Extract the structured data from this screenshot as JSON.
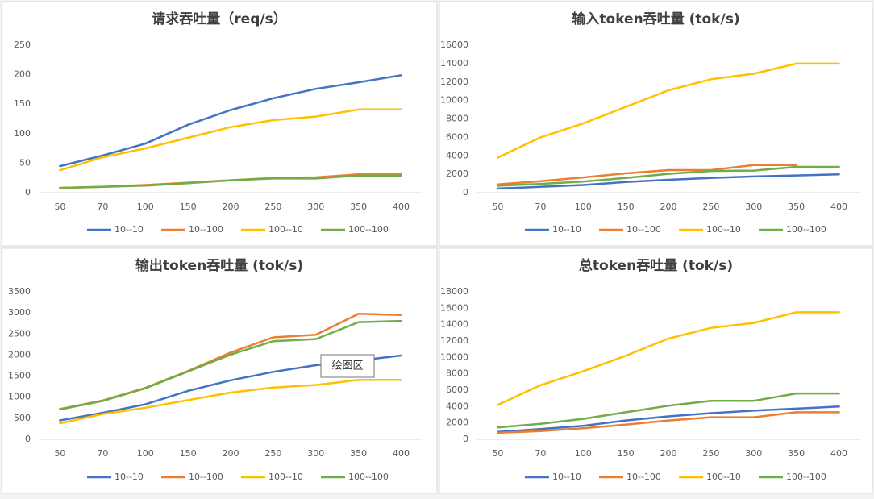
{
  "chart_data": [
    {
      "type": "line",
      "title": "请求吞吐量（req/s）",
      "categories": [
        "50",
        "70",
        "100",
        "150",
        "200",
        "250",
        "300",
        "350",
        "400"
      ],
      "ylim": [
        0,
        250
      ],
      "yticks": [
        0,
        50,
        100,
        150,
        200,
        250
      ],
      "grid": false,
      "legend": "bottom",
      "series": [
        {
          "name": "10--10",
          "color": "#4472c4",
          "values": [
            45,
            63,
            83,
            115,
            140,
            160,
            176,
            187,
            199
          ]
        },
        {
          "name": "10--100",
          "color": "#ed7d31",
          "values": [
            8,
            10,
            13,
            17,
            21,
            25,
            26,
            31,
            31
          ]
        },
        {
          "name": "100--10",
          "color": "#ffc000",
          "values": [
            38,
            60,
            75,
            93,
            111,
            123,
            129,
            141,
            141
          ]
        },
        {
          "name": "100--100",
          "color": "#70ad47",
          "values": [
            8,
            10,
            12,
            16,
            21,
            24,
            24,
            29,
            29
          ]
        }
      ]
    },
    {
      "type": "line",
      "title": "输入token吞吐量 (tok/s)",
      "categories": [
        "50",
        "70",
        "100",
        "150",
        "200",
        "250",
        "300",
        "350",
        "400"
      ],
      "ylim": [
        0,
        16000
      ],
      "yticks": [
        0,
        2000,
        4000,
        6000,
        8000,
        10000,
        12000,
        14000,
        16000
      ],
      "grid": false,
      "legend": "bottom",
      "series": [
        {
          "name": "10--10",
          "color": "#4472c4",
          "values": [
            450,
            630,
            830,
            1150,
            1400,
            1600,
            1760,
            1870,
            1990
          ]
        },
        {
          "name": "10--100",
          "color": "#ed7d31",
          "values": [
            900,
            1250,
            1650,
            2100,
            2450,
            2450,
            3000,
            3000,
            null
          ]
        },
        {
          "name": "100--10",
          "color": "#ffc000",
          "values": [
            3800,
            6000,
            7500,
            9300,
            11100,
            12300,
            12900,
            14000,
            14000
          ]
        },
        {
          "name": "100--100",
          "color": "#70ad47",
          "values": [
            750,
            950,
            1200,
            1600,
            2050,
            2350,
            2400,
            2800,
            2800
          ]
        }
      ]
    },
    {
      "type": "line",
      "title": "输出token吞吐量 (tok/s)",
      "categories": [
        "50",
        "70",
        "100",
        "150",
        "200",
        "250",
        "300",
        "350",
        "400"
      ],
      "ylim": [
        0,
        3500
      ],
      "yticks": [
        0,
        500,
        1000,
        1500,
        2000,
        2500,
        3000,
        3500
      ],
      "grid": false,
      "legend": "bottom",
      "tooltip": "绘图区",
      "series": [
        {
          "name": "10--10",
          "color": "#4472c4",
          "values": [
            450,
            630,
            830,
            1150,
            1400,
            1600,
            1760,
            1870,
            1990
          ]
        },
        {
          "name": "10--100",
          "color": "#ed7d31",
          "values": [
            720,
            920,
            1220,
            1620,
            2060,
            2420,
            2480,
            2980,
            2950
          ]
        },
        {
          "name": "100--10",
          "color": "#ffc000",
          "values": [
            380,
            600,
            750,
            930,
            1110,
            1230,
            1290,
            1410,
            1410
          ]
        },
        {
          "name": "100--100",
          "color": "#70ad47",
          "values": [
            710,
            910,
            1210,
            1610,
            2010,
            2330,
            2380,
            2780,
            2810
          ]
        }
      ]
    },
    {
      "type": "line",
      "title": "总token吞吐量 (tok/s)",
      "categories": [
        "50",
        "70",
        "100",
        "150",
        "200",
        "250",
        "300",
        "350",
        "400"
      ],
      "ylim": [
        0,
        18000
      ],
      "yticks": [
        0,
        2000,
        4000,
        6000,
        8000,
        10000,
        12000,
        14000,
        16000,
        18000
      ],
      "grid": false,
      "legend": "bottom",
      "series": [
        {
          "name": "10--10",
          "color": "#4472c4",
          "values": [
            900,
            1250,
            1650,
            2300,
            2800,
            3200,
            3500,
            3750,
            4000
          ]
        },
        {
          "name": "10--100",
          "color": "#ed7d31",
          "values": [
            800,
            1000,
            1350,
            1800,
            2300,
            2700,
            2700,
            3300,
            3300
          ]
        },
        {
          "name": "100--10",
          "color": "#ffc000",
          "values": [
            4200,
            6600,
            8300,
            10200,
            12300,
            13600,
            14200,
            15500,
            15500
          ]
        },
        {
          "name": "100--100",
          "color": "#70ad47",
          "values": [
            1450,
            1900,
            2500,
            3300,
            4100,
            4700,
            4700,
            5600,
            5600
          ]
        }
      ]
    }
  ]
}
